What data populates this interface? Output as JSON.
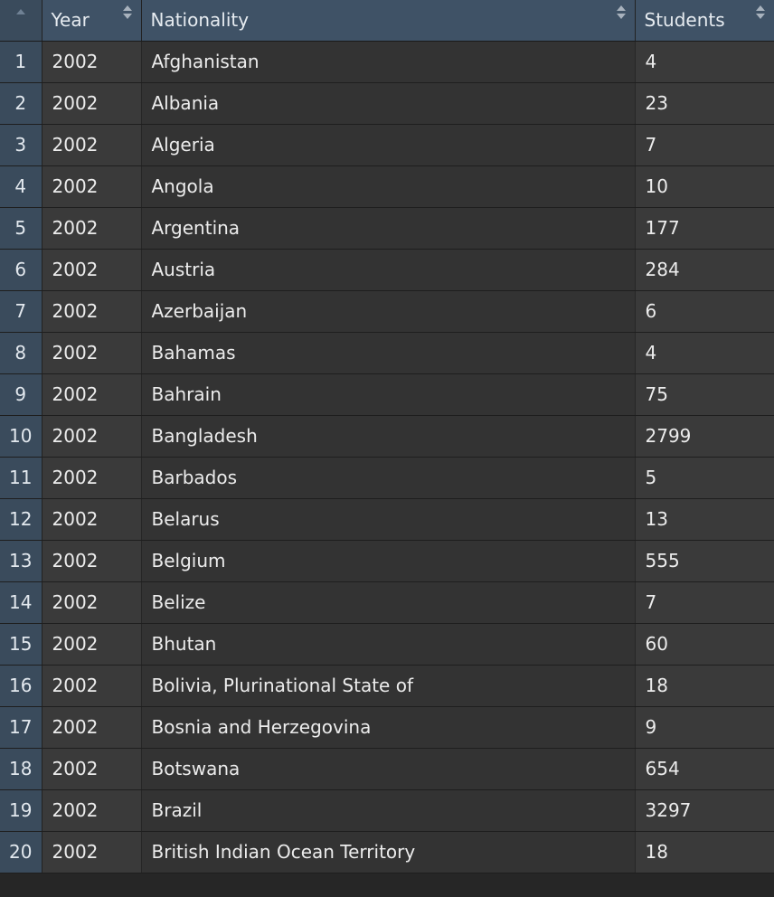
{
  "columns": {
    "index_header": "",
    "year": "Year",
    "nationality": "Nationality",
    "students": "Students"
  },
  "rows": [
    {
      "idx": "1",
      "year": "2002",
      "nationality": "Afghanistan",
      "students": "4"
    },
    {
      "idx": "2",
      "year": "2002",
      "nationality": "Albania",
      "students": "23"
    },
    {
      "idx": "3",
      "year": "2002",
      "nationality": "Algeria",
      "students": "7"
    },
    {
      "idx": "4",
      "year": "2002",
      "nationality": "Angola",
      "students": "10"
    },
    {
      "idx": "5",
      "year": "2002",
      "nationality": "Argentina",
      "students": "177"
    },
    {
      "idx": "6",
      "year": "2002",
      "nationality": "Austria",
      "students": "284"
    },
    {
      "idx": "7",
      "year": "2002",
      "nationality": "Azerbaijan",
      "students": "6"
    },
    {
      "idx": "8",
      "year": "2002",
      "nationality": "Bahamas",
      "students": "4"
    },
    {
      "idx": "9",
      "year": "2002",
      "nationality": "Bahrain",
      "students": "75"
    },
    {
      "idx": "10",
      "year": "2002",
      "nationality": "Bangladesh",
      "students": "2799"
    },
    {
      "idx": "11",
      "year": "2002",
      "nationality": "Barbados",
      "students": "5"
    },
    {
      "idx": "12",
      "year": "2002",
      "nationality": "Belarus",
      "students": "13"
    },
    {
      "idx": "13",
      "year": "2002",
      "nationality": "Belgium",
      "students": "555"
    },
    {
      "idx": "14",
      "year": "2002",
      "nationality": "Belize",
      "students": "7"
    },
    {
      "idx": "15",
      "year": "2002",
      "nationality": "Bhutan",
      "students": "60"
    },
    {
      "idx": "16",
      "year": "2002",
      "nationality": "Bolivia, Plurinational State of",
      "students": "18"
    },
    {
      "idx": "17",
      "year": "2002",
      "nationality": "Bosnia and Herzegovina",
      "students": "9"
    },
    {
      "idx": "18",
      "year": "2002",
      "nationality": "Botswana",
      "students": "654"
    },
    {
      "idx": "19",
      "year": "2002",
      "nationality": "Brazil",
      "students": "3297"
    },
    {
      "idx": "20",
      "year": "2002",
      "nationality": "British Indian Ocean Territory",
      "students": "18"
    }
  ],
  "icons": {
    "sort": "sort-both-icon",
    "index_sort": "sort-up-icon"
  },
  "colors": {
    "header_bg": "#3f5266",
    "index_bg": "#3a4b5c",
    "cell_bg": "#3a3a3a",
    "text": "#ececec"
  }
}
